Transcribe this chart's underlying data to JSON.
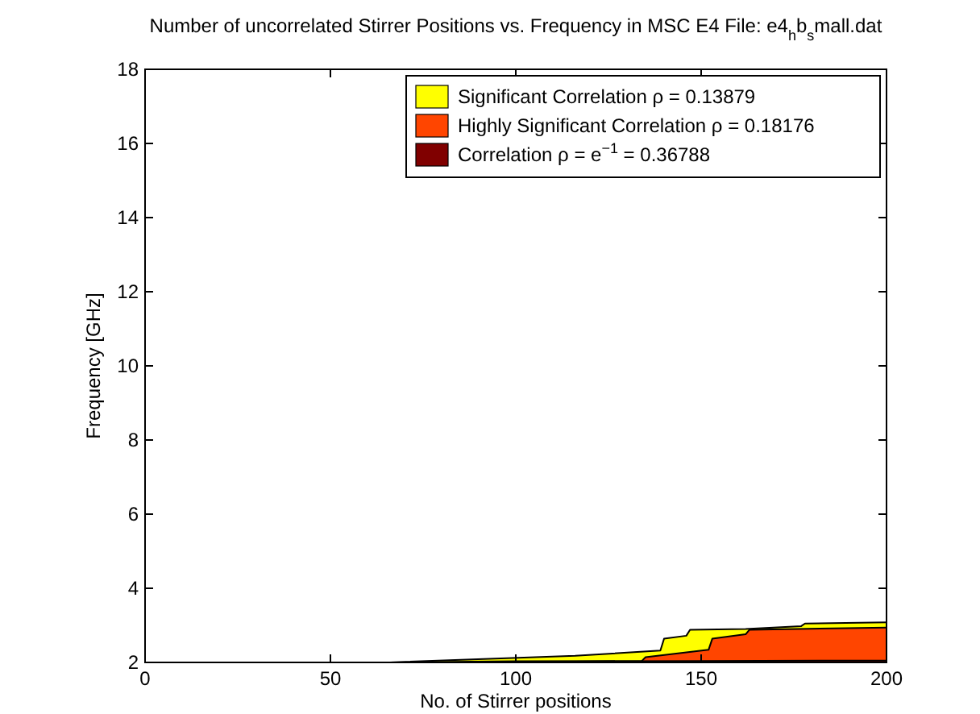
{
  "chart_data": {
    "type": "area",
    "title": "Number of uncorrelated Stirrer Positions vs. Frequency in MSC E4   File: e4$_{h}$b$_{s}$mall.dat",
    "xlabel": "No. of Stirrer positions",
    "ylabel": "Frequency [GHz]",
    "xlim": [
      0,
      200
    ],
    "xticks": [
      0,
      50,
      100,
      150,
      200
    ],
    "ylim": [
      2,
      18
    ],
    "yticks": [
      2,
      4,
      6,
      8,
      10,
      12,
      14,
      16,
      18
    ],
    "legend": "top right",
    "grid": false,
    "series": [
      {
        "name": "Significant Correlation ρ = 0.13879",
        "color": "#ffff00",
        "x": [
          0,
          66,
          116,
          139,
          140,
          146,
          147,
          162,
          177,
          178,
          200
        ],
        "values": [
          2,
          2,
          2.18,
          2.32,
          2.64,
          2.72,
          2.88,
          2.9,
          2.98,
          3.05,
          3.08
        ]
      },
      {
        "name": "Highly Significant Correlation ρ = 0.18176",
        "color": "#ff4500",
        "x": [
          0,
          100,
          116,
          134,
          135,
          152,
          153,
          162,
          163,
          200
        ],
        "values": [
          2,
          2,
          2.02,
          2.04,
          2.14,
          2.34,
          2.64,
          2.76,
          2.88,
          2.94
        ]
      },
      {
        "name": "Correlation ρ = e$^{−1}$ = 0.36788",
        "color": "#800000",
        "x": [
          0,
          66,
          100,
          150,
          200
        ],
        "values": [
          2,
          2,
          2.03,
          2.04,
          2.05
        ]
      }
    ]
  }
}
